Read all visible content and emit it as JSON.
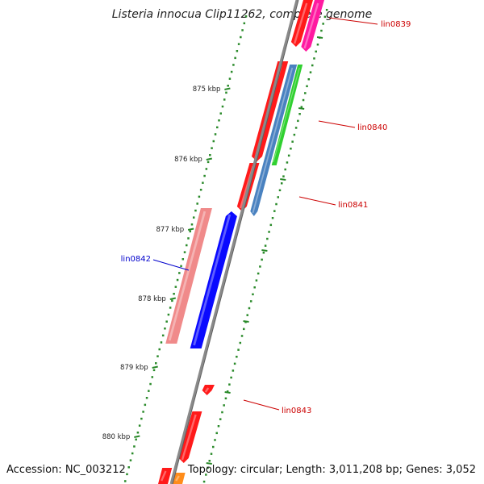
{
  "title": "Listeria innocua Clip11262, complete genome",
  "footer": {
    "accession": "Accession: NC_003212",
    "topology": "Topology: circular;",
    "length": "Length: 3,011,208 bp;",
    "genes": "Genes: 3,052"
  },
  "ruler": {
    "ticks": [
      "875 kbp",
      "876 kbp",
      "877 kbp",
      "878 kbp",
      "879 kbp",
      "880 kbp"
    ]
  },
  "genes": [
    {
      "label": "lin0839",
      "color": "#cc0000",
      "strand": "+"
    },
    {
      "label": "lin0840",
      "color": "#cc0000",
      "strand": "+"
    },
    {
      "label": "lin0841",
      "color": "#cc0000",
      "strand": "+"
    },
    {
      "label": "lin0842",
      "color": "#0000cc",
      "strand": "-"
    },
    {
      "label": "lin0843",
      "color": "#cc0000",
      "strand": "+"
    }
  ],
  "colors": {
    "backbone": "#8a8a8a",
    "tick": "#2a8a2a",
    "forward_gene": "#ff1a1a",
    "reverse_gene": "#0a0aff",
    "pink_feature": "#f08a8a",
    "magenta_feature": "#ff1aa0",
    "steelblue_feature": "#4a82c0",
    "green_feature": "#30d030",
    "orange_feature": "#ff8c1a"
  }
}
